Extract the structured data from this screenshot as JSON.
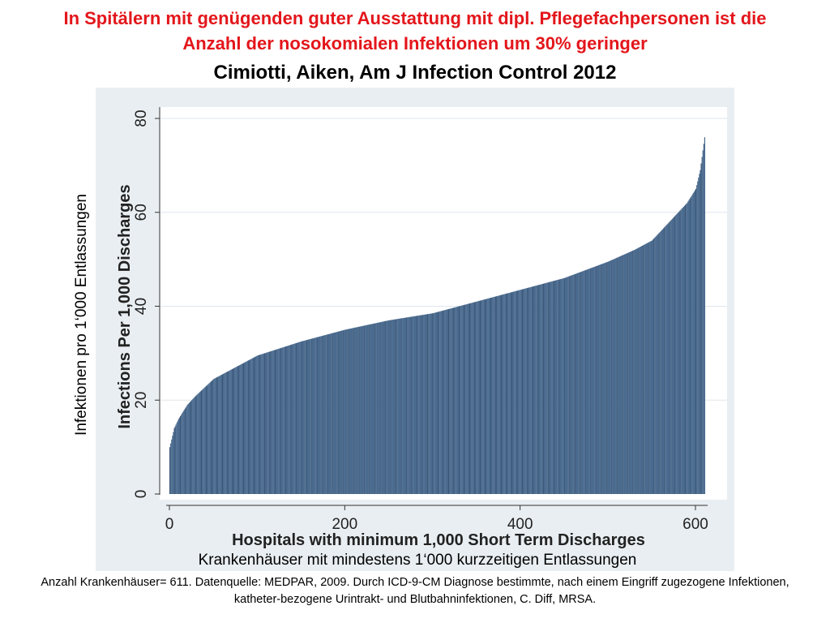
{
  "header": {
    "title_line1": "In Spitälern mit genügenden guter Ausstattung mit dipl. Pflegefachpersonen ist die",
    "title_line2": "Anzahl der nosokomialen Infektionen um 30% geringer",
    "subtitle": "Cimiotti, Aiken, Am J Infection Control 2012"
  },
  "overlay": {
    "y_label_de": "Infektionen pro 1‘000 Entlassungen",
    "x_label_de": "Krankenhäuser mit mindestens 1‘000 kurzzeitigen Entlassungen"
  },
  "footnote": "Anzahl Krankenhäuser= 611. Datenquelle: MEDPAR, 2009. Durch ICD-9-CM Diagnose bestimmte, nach einem Eingriff zugezogene Infektionen, katheter-bezogene Urintrakt- und Blutbahninfektionen, C. Diff, MRSA.",
  "colors": {
    "title_red": "#e3161b",
    "bar_fill": "#4a6a8e",
    "bar_stripe": "#3a5677",
    "plot_region_bg": "#e9eef2"
  },
  "chart_data": {
    "type": "bar",
    "n": 611,
    "xlabel": "Hospitals with minimum 1,000 Short Term Discharges",
    "ylabel": "Infections Per 1,000 Discharges",
    "xlim": [
      0,
      611
    ],
    "ylim": [
      0,
      80
    ],
    "x_ticks": [
      0,
      200,
      400,
      600
    ],
    "y_ticks": [
      0,
      20,
      40,
      60,
      80
    ],
    "grid": true,
    "sorted_ascending": true,
    "quantiles": [
      [
        0,
        10
      ],
      [
        5,
        14
      ],
      [
        10,
        16
      ],
      [
        20,
        19
      ],
      [
        30,
        21
      ],
      [
        50,
        24.5
      ],
      [
        75,
        27
      ],
      [
        100,
        29.5
      ],
      [
        150,
        32.5
      ],
      [
        200,
        35
      ],
      [
        250,
        37
      ],
      [
        300,
        38.5
      ],
      [
        350,
        41
      ],
      [
        400,
        43.5
      ],
      [
        450,
        46
      ],
      [
        500,
        49.5
      ],
      [
        530,
        52
      ],
      [
        550,
        54
      ],
      [
        570,
        58
      ],
      [
        590,
        62
      ],
      [
        600,
        65
      ],
      [
        605,
        69
      ],
      [
        610,
        76
      ]
    ]
  }
}
